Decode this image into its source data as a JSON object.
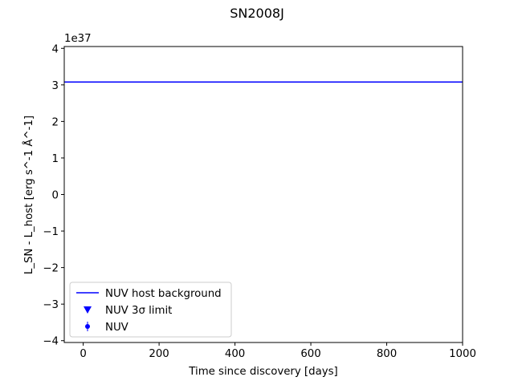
{
  "chart_data": {
    "type": "line",
    "title": "SN2008J",
    "xlabel": "Time since discovery [days]",
    "ylabel": "L_SN - L_host [erg s^-1 Å^-1]",
    "y_offset_label": "1e37",
    "xlim": [
      -50,
      1000
    ],
    "ylim": [
      -4.05,
      4.05
    ],
    "y_scale_exponent": 37,
    "x_ticks": [
      0,
      200,
      400,
      600,
      800,
      1000
    ],
    "x_tick_labels": [
      "0",
      "200",
      "400",
      "600",
      "800",
      "1000"
    ],
    "y_ticks": [
      -4,
      -3,
      -2,
      -1,
      0,
      1,
      2,
      3,
      4
    ],
    "y_tick_labels": [
      "−4",
      "−3",
      "−2",
      "−1",
      "0",
      "1",
      "2",
      "3",
      "4"
    ],
    "grid": false,
    "legend_position": "lower-left",
    "series": [
      {
        "name": "NUV host background",
        "kind": "hline",
        "color": "#0000ff",
        "y": 3.08
      },
      {
        "name": "NUV 3σ limit",
        "kind": "marker",
        "marker": "triangle-down",
        "color": "#0000ff",
        "points": []
      },
      {
        "name": "NUV",
        "kind": "errorbar",
        "marker": "circle",
        "color": "#0000ff",
        "points": []
      }
    ]
  }
}
